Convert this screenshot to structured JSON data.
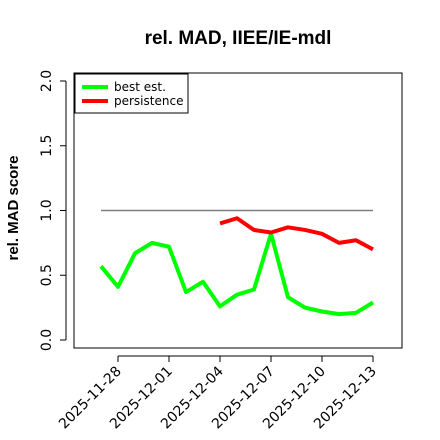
{
  "chart_data": {
    "type": "line",
    "title": "rel. MAD, IIEE/IE-mdl",
    "xlabel": "",
    "ylabel": "rel. MAD score",
    "ylim": [
      0.0,
      2.0
    ],
    "yticks": [
      "0.0",
      "0.5",
      "1.0",
      "1.5",
      "2.0"
    ],
    "x": [
      "2025-11-27",
      "2025-11-28",
      "2025-11-29",
      "2025-11-30",
      "2025-12-01",
      "2025-12-02",
      "2025-12-03",
      "2025-12-04",
      "2025-12-05",
      "2025-12-06",
      "2025-12-07",
      "2025-12-08",
      "2025-12-09",
      "2025-12-10",
      "2025-12-11",
      "2025-12-12",
      "2025-12-13"
    ],
    "xticks": [
      "2025-11-28",
      "2025-12-01",
      "2025-12-04",
      "2025-12-07",
      "2025-12-10",
      "2025-12-13"
    ],
    "reference_line": 1.0,
    "legend_position": "top-left",
    "grid": false,
    "series": [
      {
        "name": "best est.",
        "color": "#00ff00",
        "values": [
          0.57,
          0.41,
          0.67,
          0.75,
          0.72,
          0.37,
          0.45,
          0.26,
          0.35,
          0.39,
          0.82,
          0.33,
          0.25,
          0.22,
          0.2,
          0.21,
          0.29
        ]
      },
      {
        "name": "persistence",
        "color": "#ff0000",
        "values": [
          null,
          null,
          null,
          null,
          null,
          null,
          null,
          0.9,
          0.94,
          0.85,
          0.83,
          0.87,
          0.85,
          0.82,
          0.75,
          0.77,
          0.7
        ]
      }
    ]
  }
}
